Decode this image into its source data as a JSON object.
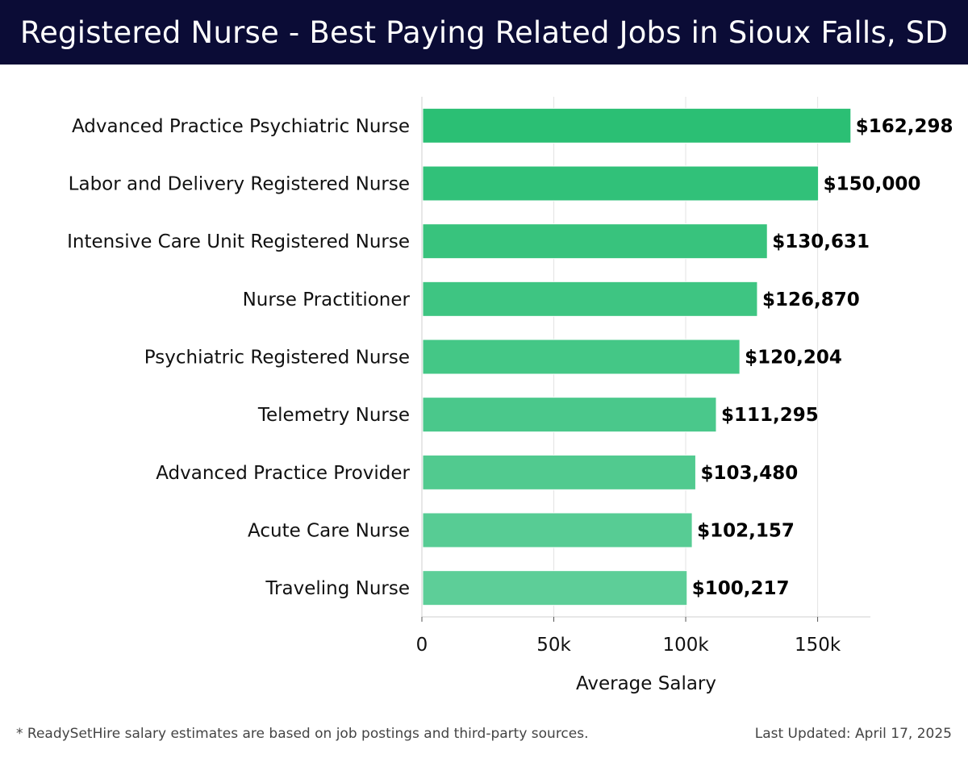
{
  "header": {
    "title": "Registered Nurse - Best Paying Related Jobs in Sioux Falls, SD"
  },
  "chart_data": {
    "type": "bar",
    "orientation": "horizontal",
    "categories": [
      "Advanced Practice Psychiatric Nurse",
      "Labor and Delivery Registered Nurse",
      "Intensive Care Unit Registered Nurse",
      "Nurse Practitioner",
      "Psychiatric Registered Nurse",
      "Telemetry Nurse",
      "Advanced Practice Provider",
      "Acute Care Nurse",
      "Traveling Nurse"
    ],
    "values": [
      162298,
      150000,
      130631,
      126870,
      120204,
      111295,
      103480,
      102157,
      100217
    ],
    "value_labels": [
      "$162,298",
      "$150,000",
      "$130,631",
      "$126,870",
      "$120,204",
      "$111,295",
      "$103,480",
      "$102,157",
      "$100,217"
    ],
    "xlabel": "Average Salary",
    "ylabel": "",
    "xlim": [
      0,
      170000
    ],
    "xticks": [
      0,
      50000,
      100000,
      150000
    ],
    "xtick_labels": [
      "0",
      "50k",
      "100k",
      "150k"
    ],
    "grid": true,
    "colors": {
      "bar_top": "#2bbf74",
      "bar_bottom": "#5dce98"
    }
  },
  "footer": {
    "note": "* ReadySetHire salary estimates are based on job postings and third-party sources.",
    "updated": "Last Updated: April 17, 2025"
  }
}
